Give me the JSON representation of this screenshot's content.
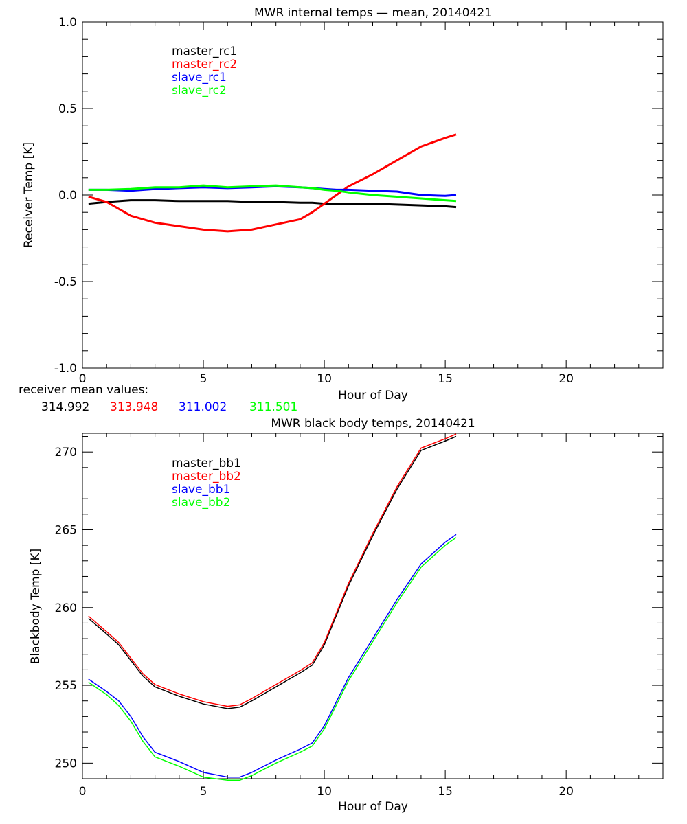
{
  "colors": {
    "black": "#000000",
    "red": "#ff0000",
    "blue": "#0000ff",
    "green": "#00ff00"
  },
  "receiver_mean": {
    "label": "receiver mean values:",
    "values": [
      {
        "text": "314.992",
        "color": "#000000"
      },
      {
        "text": "313.948",
        "color": "#ff0000"
      },
      {
        "text": "311.002",
        "color": "#0000ff"
      },
      {
        "text": "311.501",
        "color": "#00ff00"
      }
    ]
  },
  "chart_data": [
    {
      "type": "line",
      "title": "MWR internal temps — mean, 20140421",
      "xlabel": "Hour of Day",
      "ylabel": "Receiver Temp [K]",
      "xlim": [
        0,
        24
      ],
      "ylim": [
        -1.0,
        1.0
      ],
      "xticks": [
        "0",
        "5",
        "10",
        "15",
        "20"
      ],
      "yticks": [
        "-1.0",
        "-0.5",
        "0.0",
        "0.5",
        "1.0"
      ],
      "grid": false,
      "legend_position": "top-left",
      "x": [
        0.25,
        1,
        2,
        3,
        4,
        5,
        6,
        7,
        8,
        9,
        9.5,
        10,
        10.5,
        11,
        12,
        13,
        14,
        15,
        15.45
      ],
      "series": [
        {
          "name": "master_rc1",
          "color": "#000000",
          "values": [
            -0.05,
            -0.04,
            -0.03,
            -0.03,
            -0.035,
            -0.035,
            -0.035,
            -0.04,
            -0.04,
            -0.045,
            -0.045,
            -0.05,
            -0.05,
            -0.05,
            -0.05,
            -0.055,
            -0.06,
            -0.065,
            -0.07
          ]
        },
        {
          "name": "master_rc2",
          "color": "#ff0000",
          "values": [
            -0.01,
            -0.04,
            -0.12,
            -0.16,
            -0.18,
            -0.2,
            -0.21,
            -0.2,
            -0.17,
            -0.14,
            -0.1,
            -0.05,
            0.0,
            0.05,
            0.12,
            0.2,
            0.28,
            0.33,
            0.35
          ]
        },
        {
          "name": "slave_rc1",
          "color": "#0000ff",
          "values": [
            0.03,
            0.03,
            0.025,
            0.035,
            0.04,
            0.045,
            0.04,
            0.045,
            0.05,
            0.045,
            0.04,
            0.035,
            0.03,
            0.03,
            0.025,
            0.02,
            0.0,
            -0.005,
            0.0
          ]
        },
        {
          "name": "slave_rc2",
          "color": "#00ff00",
          "values": [
            0.03,
            0.03,
            0.035,
            0.045,
            0.045,
            0.055,
            0.045,
            0.05,
            0.055,
            0.045,
            0.04,
            0.03,
            0.025,
            0.015,
            0.0,
            -0.01,
            -0.02,
            -0.03,
            -0.035
          ]
        }
      ]
    },
    {
      "type": "line",
      "title": "MWR black body temps, 20140421",
      "xlabel": "Hour of Day",
      "ylabel": "Blackbody Temp [K]",
      "xlim": [
        0,
        24
      ],
      "ylim": [
        249.0,
        271.2
      ],
      "xticks": [
        "0",
        "5",
        "10",
        "15",
        "20"
      ],
      "yticks": [
        "250",
        "255",
        "260",
        "265",
        "270"
      ],
      "grid": false,
      "legend_position": "top-left",
      "x": [
        0.25,
        1,
        1.5,
        2,
        2.5,
        3,
        4,
        5,
        6,
        6.5,
        7,
        8,
        9,
        9.5,
        10,
        11,
        12,
        13,
        14,
        15,
        15.45
      ],
      "series": [
        {
          "name": "master_bb1",
          "color": "#000000",
          "values": [
            259.3,
            258.3,
            257.6,
            256.6,
            255.6,
            254.9,
            254.3,
            253.8,
            253.5,
            253.6,
            254.0,
            254.9,
            255.8,
            256.3,
            257.6,
            261.4,
            264.6,
            267.6,
            270.1,
            270.7,
            271.0
          ]
        },
        {
          "name": "master_bb2",
          "color": "#ff0000",
          "values": [
            259.45,
            258.45,
            257.75,
            256.75,
            255.75,
            255.05,
            254.45,
            253.95,
            253.65,
            253.75,
            254.15,
            255.05,
            255.95,
            256.45,
            257.75,
            261.55,
            264.75,
            267.75,
            270.25,
            270.85,
            271.15
          ]
        },
        {
          "name": "slave_bb1",
          "color": "#0000ff",
          "values": [
            255.4,
            254.6,
            254.0,
            253.0,
            251.7,
            250.7,
            250.1,
            249.4,
            249.1,
            249.1,
            249.4,
            250.2,
            250.9,
            251.3,
            252.4,
            255.5,
            258.0,
            260.5,
            262.8,
            264.2,
            264.7
          ]
        },
        {
          "name": "slave_bb2",
          "color": "#00ff00",
          "values": [
            255.2,
            254.4,
            253.7,
            252.7,
            251.4,
            250.4,
            249.8,
            249.1,
            248.9,
            248.9,
            249.2,
            250.0,
            250.7,
            251.1,
            252.2,
            255.3,
            257.8,
            260.3,
            262.6,
            264.0,
            264.5
          ]
        }
      ]
    }
  ]
}
